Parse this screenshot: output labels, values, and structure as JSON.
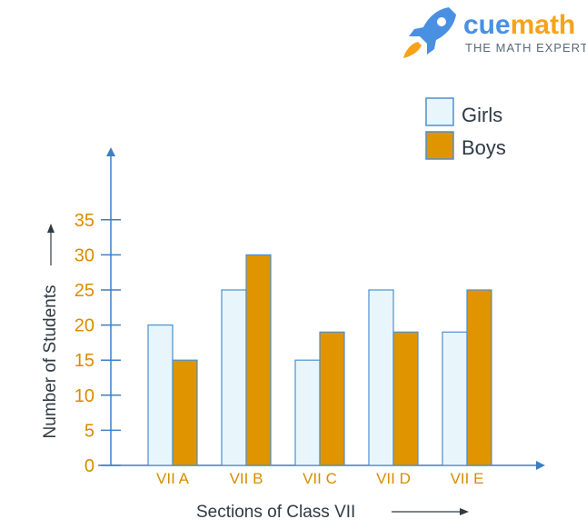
{
  "brand": {
    "name_part1": "cue",
    "name_part2": "math",
    "tagline": "THE MATH EXPERT",
    "logo_icon": "rocket-icon",
    "color_part1": "#4a90e2",
    "color_part2": "#f7a21b"
  },
  "chart_data": {
    "type": "bar",
    "title": "",
    "xlabel": "Sections of Class VII",
    "ylabel": "Number of Students",
    "categories": [
      "VII A",
      "VII B",
      "VII C",
      "VII D",
      "VII E"
    ],
    "series": [
      {
        "name": "Girls",
        "values": [
          20,
          25,
          15,
          25,
          19
        ],
        "color": "#e8f6fc"
      },
      {
        "name": "Boys",
        "values": [
          15,
          30,
          19,
          19,
          25
        ],
        "color": "#e09400"
      }
    ],
    "ylim": [
      0,
      35
    ],
    "yticks": [
      "0",
      "5",
      "10",
      "15",
      "20",
      "25",
      "30",
      "35"
    ],
    "grid": false,
    "legend": "top-right",
    "colors": {
      "axis": "#3d7fc4",
      "tick_text": "#d98b00",
      "bar_edge": "#4a8fd0"
    }
  }
}
